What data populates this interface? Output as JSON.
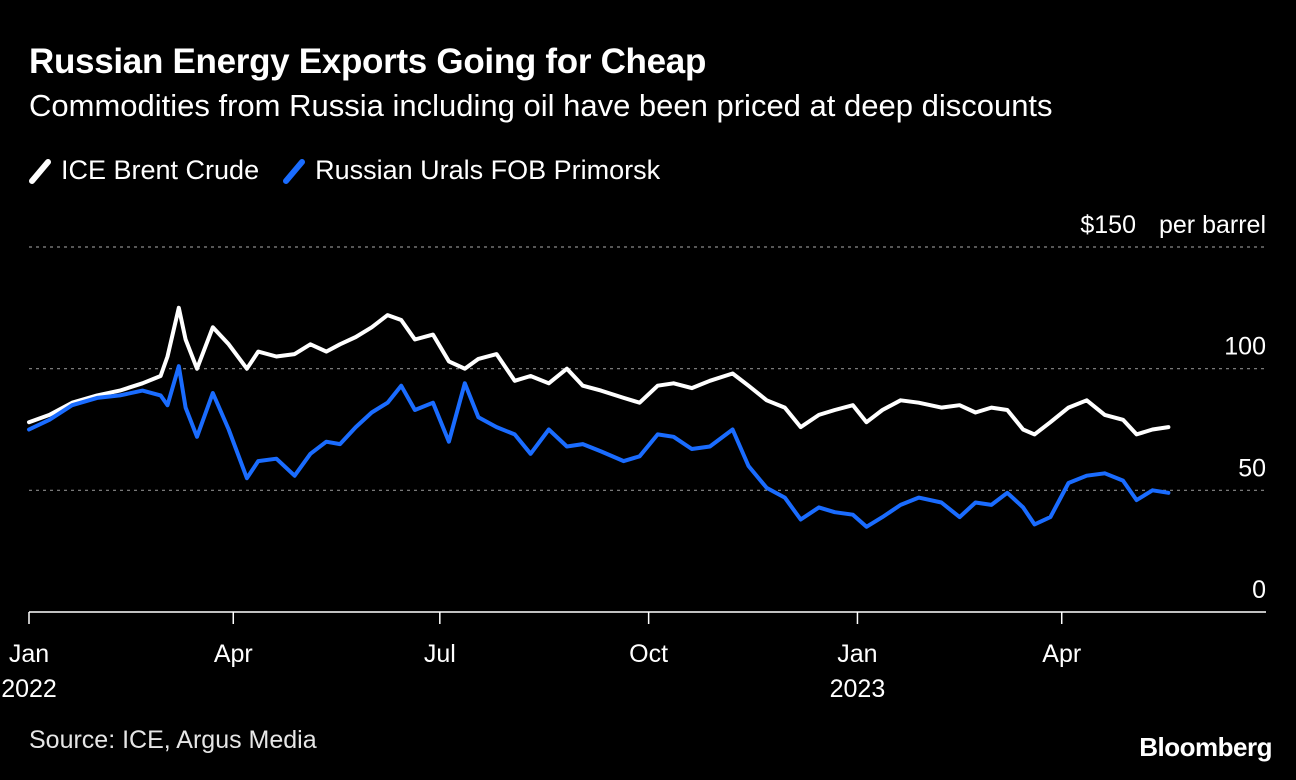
{
  "header": {
    "title": "Russian Energy Exports Going for Cheap",
    "subtitle": "Commodities from Russia including oil have been priced at deep discounts"
  },
  "footer": {
    "source": "Source: ICE, Argus Media",
    "brand": "Bloomberg"
  },
  "colors": {
    "background": "#000000",
    "brent": "#ffffff",
    "urals": "#1a6cff",
    "gridline": "#8a8a8a"
  },
  "chart_data": {
    "type": "line",
    "title": "Russian Energy Exports Going for Cheap",
    "subtitle": "Commodities from Russia including oil have been priced at deep discounts",
    "ylabel": "",
    "yunit": "per barrel",
    "ylim": [
      0,
      150
    ],
    "yticks": [
      {
        "value": 150,
        "label": "$150"
      },
      {
        "value": 100,
        "label": "100"
      },
      {
        "value": 50,
        "label": "50"
      },
      {
        "value": 0,
        "label": "0"
      }
    ],
    "xlim": [
      "2022-01-01",
      "2023-06-30"
    ],
    "xticks": [
      {
        "date": "2022-01-01",
        "label": "Jan",
        "sublabel": "2022"
      },
      {
        "date": "2022-04-01",
        "label": "Apr",
        "sublabel": ""
      },
      {
        "date": "2022-07-01",
        "label": "Jul",
        "sublabel": ""
      },
      {
        "date": "2022-10-01",
        "label": "Oct",
        "sublabel": ""
      },
      {
        "date": "2023-01-01",
        "label": "Jan",
        "sublabel": "2023"
      },
      {
        "date": "2023-04-01",
        "label": "Apr",
        "sublabel": ""
      }
    ],
    "grid": true,
    "legend_position": "top-left",
    "series": [
      {
        "name": "ICE Brent Crude",
        "color": "#ffffff",
        "points": [
          [
            "2022-01-01",
            78
          ],
          [
            "2022-01-10",
            81
          ],
          [
            "2022-01-20",
            86
          ],
          [
            "2022-01-31",
            89
          ],
          [
            "2022-02-10",
            91
          ],
          [
            "2022-02-20",
            94
          ],
          [
            "2022-02-28",
            97
          ],
          [
            "2022-03-03",
            105
          ],
          [
            "2022-03-08",
            125
          ],
          [
            "2022-03-11",
            112
          ],
          [
            "2022-03-16",
            100
          ],
          [
            "2022-03-23",
            117
          ],
          [
            "2022-03-30",
            110
          ],
          [
            "2022-04-07",
            100
          ],
          [
            "2022-04-12",
            107
          ],
          [
            "2022-04-20",
            105
          ],
          [
            "2022-04-28",
            106
          ],
          [
            "2022-05-05",
            110
          ],
          [
            "2022-05-12",
            107
          ],
          [
            "2022-05-18",
            110
          ],
          [
            "2022-05-25",
            113
          ],
          [
            "2022-06-01",
            117
          ],
          [
            "2022-06-08",
            122
          ],
          [
            "2022-06-14",
            120
          ],
          [
            "2022-06-20",
            112
          ],
          [
            "2022-06-28",
            114
          ],
          [
            "2022-07-05",
            103
          ],
          [
            "2022-07-12",
            100
          ],
          [
            "2022-07-18",
            104
          ],
          [
            "2022-07-26",
            106
          ],
          [
            "2022-08-03",
            95
          ],
          [
            "2022-08-10",
            97
          ],
          [
            "2022-08-18",
            94
          ],
          [
            "2022-08-26",
            100
          ],
          [
            "2022-09-02",
            93
          ],
          [
            "2022-09-10",
            91
          ],
          [
            "2022-09-20",
            88
          ],
          [
            "2022-09-27",
            86
          ],
          [
            "2022-10-05",
            93
          ],
          [
            "2022-10-12",
            94
          ],
          [
            "2022-10-20",
            92
          ],
          [
            "2022-10-28",
            95
          ],
          [
            "2022-11-07",
            98
          ],
          [
            "2022-11-14",
            93
          ],
          [
            "2022-11-22",
            87
          ],
          [
            "2022-11-30",
            84
          ],
          [
            "2022-12-07",
            76
          ],
          [
            "2022-12-15",
            81
          ],
          [
            "2022-12-22",
            83
          ],
          [
            "2022-12-30",
            85
          ],
          [
            "2023-01-05",
            78
          ],
          [
            "2023-01-12",
            83
          ],
          [
            "2023-01-20",
            87
          ],
          [
            "2023-01-28",
            86
          ],
          [
            "2023-02-07",
            84
          ],
          [
            "2023-02-15",
            85
          ],
          [
            "2023-02-22",
            82
          ],
          [
            "2023-03-01",
            84
          ],
          [
            "2023-03-08",
            83
          ],
          [
            "2023-03-15",
            75
          ],
          [
            "2023-03-20",
            73
          ],
          [
            "2023-03-27",
            78
          ],
          [
            "2023-04-04",
            84
          ],
          [
            "2023-04-12",
            87
          ],
          [
            "2023-04-20",
            81
          ],
          [
            "2023-04-28",
            79
          ],
          [
            "2023-05-04",
            73
          ],
          [
            "2023-05-11",
            75
          ],
          [
            "2023-05-18",
            76
          ]
        ]
      },
      {
        "name": "Russian Urals FOB Primorsk",
        "color": "#1a6cff",
        "points": [
          [
            "2022-01-01",
            75
          ],
          [
            "2022-01-10",
            79
          ],
          [
            "2022-01-20",
            85
          ],
          [
            "2022-01-31",
            88
          ],
          [
            "2022-02-10",
            89
          ],
          [
            "2022-02-20",
            91
          ],
          [
            "2022-02-28",
            89
          ],
          [
            "2022-03-03",
            85
          ],
          [
            "2022-03-08",
            101
          ],
          [
            "2022-03-11",
            84
          ],
          [
            "2022-03-16",
            72
          ],
          [
            "2022-03-23",
            90
          ],
          [
            "2022-03-30",
            75
          ],
          [
            "2022-04-07",
            55
          ],
          [
            "2022-04-12",
            62
          ],
          [
            "2022-04-20",
            63
          ],
          [
            "2022-04-28",
            56
          ],
          [
            "2022-05-05",
            65
          ],
          [
            "2022-05-12",
            70
          ],
          [
            "2022-05-18",
            69
          ],
          [
            "2022-05-25",
            76
          ],
          [
            "2022-06-01",
            82
          ],
          [
            "2022-06-08",
            86
          ],
          [
            "2022-06-14",
            93
          ],
          [
            "2022-06-20",
            83
          ],
          [
            "2022-06-28",
            86
          ],
          [
            "2022-07-05",
            70
          ],
          [
            "2022-07-12",
            94
          ],
          [
            "2022-07-18",
            80
          ],
          [
            "2022-07-26",
            76
          ],
          [
            "2022-08-03",
            73
          ],
          [
            "2022-08-10",
            65
          ],
          [
            "2022-08-18",
            75
          ],
          [
            "2022-08-26",
            68
          ],
          [
            "2022-09-02",
            69
          ],
          [
            "2022-09-10",
            66
          ],
          [
            "2022-09-20",
            62
          ],
          [
            "2022-09-27",
            64
          ],
          [
            "2022-10-05",
            73
          ],
          [
            "2022-10-12",
            72
          ],
          [
            "2022-10-20",
            67
          ],
          [
            "2022-10-28",
            68
          ],
          [
            "2022-11-07",
            75
          ],
          [
            "2022-11-14",
            60
          ],
          [
            "2022-11-22",
            51
          ],
          [
            "2022-11-30",
            47
          ],
          [
            "2022-12-07",
            38
          ],
          [
            "2022-12-15",
            43
          ],
          [
            "2022-12-22",
            41
          ],
          [
            "2022-12-30",
            40
          ],
          [
            "2023-01-05",
            35
          ],
          [
            "2023-01-12",
            39
          ],
          [
            "2023-01-20",
            44
          ],
          [
            "2023-01-28",
            47
          ],
          [
            "2023-02-07",
            45
          ],
          [
            "2023-02-15",
            39
          ],
          [
            "2023-02-22",
            45
          ],
          [
            "2023-03-01",
            44
          ],
          [
            "2023-03-08",
            49
          ],
          [
            "2023-03-15",
            43
          ],
          [
            "2023-03-20",
            36
          ],
          [
            "2023-03-27",
            39
          ],
          [
            "2023-04-04",
            53
          ],
          [
            "2023-04-12",
            56
          ],
          [
            "2023-04-20",
            57
          ],
          [
            "2023-04-28",
            54
          ],
          [
            "2023-05-04",
            46
          ],
          [
            "2023-05-11",
            50
          ],
          [
            "2023-05-18",
            49
          ]
        ]
      }
    ]
  }
}
